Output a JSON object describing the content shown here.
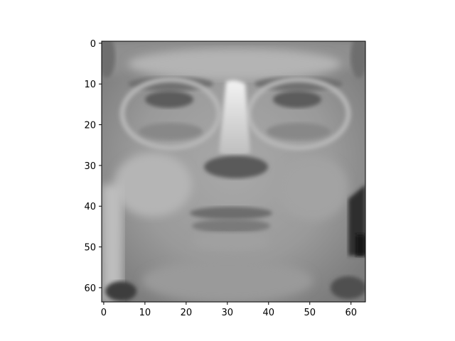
{
  "image": {
    "description_rows": 64,
    "description_cols": 64,
    "colormap": "gray"
  },
  "axes": {
    "x_ticks": [
      "0",
      "10",
      "20",
      "30",
      "40",
      "50",
      "60"
    ],
    "y_ticks": [
      "0",
      "10",
      "20",
      "30",
      "40",
      "50",
      "60"
    ],
    "x_tick_values": [
      0,
      10,
      20,
      30,
      40,
      50,
      60
    ],
    "y_tick_values": [
      0,
      10,
      20,
      30,
      40,
      50,
      60
    ],
    "extent": [
      -0.5,
      63.5
    ]
  }
}
